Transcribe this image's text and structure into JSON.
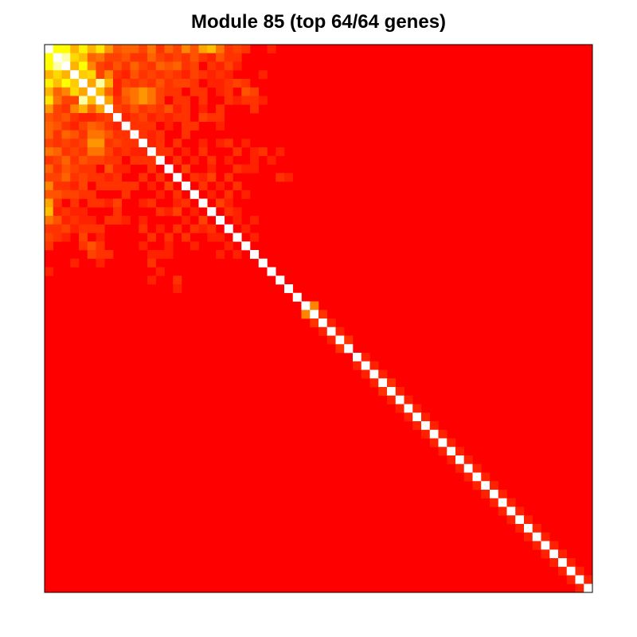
{
  "chart_data": {
    "type": "heatmap",
    "title": "Module 85 (top 64/64 genes)",
    "xlabel": "",
    "ylabel": "",
    "n_genes": 64,
    "value_range": [
      0,
      1
    ],
    "diagonal_value": 1,
    "default_value": 0,
    "color_scale": {
      "low": "#ff0000",
      "mid": "#ffa500",
      "high": "#ffff00",
      "max": "#ffffff"
    },
    "cells": [
      [
        0,
        1,
        0.85
      ],
      [
        0,
        2,
        0.85
      ],
      [
        0,
        3,
        0.55
      ],
      [
        0,
        4,
        0.8
      ],
      [
        0,
        5,
        0.55
      ],
      [
        0,
        6,
        0.75
      ],
      [
        0,
        7,
        0.45
      ],
      [
        0,
        8,
        0.25
      ],
      [
        0,
        9,
        0.3
      ],
      [
        0,
        10,
        0.3
      ],
      [
        0,
        11,
        0.2
      ],
      [
        0,
        12,
        0.35
      ],
      [
        0,
        13,
        0.15
      ],
      [
        0,
        14,
        0.3
      ],
      [
        0,
        15,
        0.2
      ],
      [
        0,
        16,
        0.4
      ],
      [
        0,
        17,
        0.25
      ],
      [
        0,
        18,
        0.5
      ],
      [
        0,
        19,
        0.6
      ],
      [
        0,
        20,
        0.35
      ],
      [
        0,
        21,
        0.15
      ],
      [
        0,
        22,
        0.2
      ],
      [
        0,
        23,
        0.15
      ],
      [
        0,
        26,
        0.1
      ],
      [
        1,
        2,
        0.95
      ],
      [
        1,
        3,
        0.7
      ],
      [
        1,
        4,
        0.6
      ],
      [
        1,
        5,
        0.3
      ],
      [
        1,
        6,
        0.35
      ],
      [
        1,
        7,
        0.2
      ],
      [
        1,
        8,
        0.2
      ],
      [
        1,
        9,
        0.25
      ],
      [
        1,
        10,
        0.15
      ],
      [
        1,
        11,
        0.15
      ],
      [
        1,
        12,
        0.3
      ],
      [
        1,
        13,
        0.2
      ],
      [
        1,
        14,
        0.15
      ],
      [
        1,
        15,
        0.2
      ],
      [
        1,
        16,
        0.15
      ],
      [
        1,
        17,
        0.25
      ],
      [
        1,
        18,
        0.15
      ],
      [
        1,
        19,
        0.1
      ],
      [
        1,
        20,
        0.25
      ],
      [
        1,
        21,
        0.15
      ],
      [
        1,
        22,
        0.15
      ],
      [
        2,
        3,
        0.55
      ],
      [
        2,
        4,
        0.85
      ],
      [
        2,
        5,
        0.4
      ],
      [
        2,
        6,
        0.2
      ],
      [
        2,
        7,
        0.15
      ],
      [
        2,
        8,
        0.25
      ],
      [
        2,
        9,
        0.15
      ],
      [
        2,
        10,
        0.3
      ],
      [
        2,
        11,
        0.2
      ],
      [
        2,
        12,
        0.15
      ],
      [
        2,
        13,
        0.3
      ],
      [
        2,
        14,
        0.25
      ],
      [
        2,
        15,
        0.3
      ],
      [
        2,
        16,
        0.15
      ],
      [
        2,
        17,
        0.2
      ],
      [
        2,
        19,
        0.15
      ],
      [
        2,
        20,
        0.1
      ],
      [
        2,
        21,
        0.2
      ],
      [
        2,
        22,
        0.1
      ],
      [
        3,
        4,
        0.65
      ],
      [
        3,
        5,
        0.7
      ],
      [
        3,
        6,
        0.2
      ],
      [
        3,
        7,
        0.4
      ],
      [
        3,
        8,
        0.15
      ],
      [
        3,
        9,
        0.1
      ],
      [
        3,
        10,
        0.25
      ],
      [
        3,
        11,
        0.15
      ],
      [
        3,
        12,
        0.2
      ],
      [
        3,
        13,
        0.15
      ],
      [
        3,
        14,
        0.2
      ],
      [
        3,
        15,
        0.15
      ],
      [
        3,
        16,
        0.1
      ],
      [
        3,
        17,
        0.2
      ],
      [
        3,
        18,
        0.15
      ],
      [
        3,
        19,
        0.1
      ],
      [
        3,
        20,
        0.15
      ],
      [
        3,
        21,
        0.1
      ],
      [
        3,
        25,
        0.1
      ],
      [
        4,
        5,
        0.5
      ],
      [
        4,
        6,
        0.95
      ],
      [
        4,
        7,
        0.55
      ],
      [
        4,
        8,
        0.1
      ],
      [
        4,
        9,
        0.2
      ],
      [
        4,
        10,
        0.15
      ],
      [
        4,
        11,
        0.2
      ],
      [
        4,
        12,
        0.15
      ],
      [
        4,
        13,
        0.25
      ],
      [
        4,
        14,
        0.15
      ],
      [
        4,
        15,
        0.2
      ],
      [
        4,
        16,
        0.2
      ],
      [
        4,
        17,
        0.15
      ],
      [
        4,
        19,
        0.1
      ],
      [
        4,
        20,
        0.1
      ],
      [
        4,
        21,
        0.15
      ],
      [
        4,
        22,
        0.2
      ],
      [
        4,
        23,
        0.15
      ],
      [
        5,
        6,
        0.6
      ],
      [
        5,
        7,
        0.3
      ],
      [
        5,
        8,
        0.1
      ],
      [
        5,
        9,
        0.3
      ],
      [
        5,
        10,
        0.35
      ],
      [
        5,
        11,
        0.45
      ],
      [
        5,
        12,
        0.35
      ],
      [
        5,
        13,
        0.2
      ],
      [
        5,
        14,
        0.15
      ],
      [
        5,
        15,
        0.15
      ],
      [
        5,
        17,
        0.15
      ],
      [
        5,
        18,
        0.15
      ],
      [
        5,
        20,
        0.1
      ],
      [
        5,
        21,
        0.15
      ],
      [
        5,
        23,
        0.25
      ],
      [
        5,
        24,
        0.2
      ],
      [
        6,
        7,
        0.5
      ],
      [
        6,
        8,
        0.15
      ],
      [
        6,
        9,
        0.25
      ],
      [
        6,
        10,
        0.35
      ],
      [
        6,
        11,
        0.45
      ],
      [
        6,
        12,
        0.35
      ],
      [
        6,
        13,
        0.2
      ],
      [
        6,
        15,
        0.15
      ],
      [
        6,
        16,
        0.15
      ],
      [
        6,
        18,
        0.15
      ],
      [
        6,
        21,
        0.15
      ],
      [
        6,
        22,
        0.1
      ],
      [
        6,
        23,
        0.15
      ],
      [
        6,
        24,
        0.15
      ],
      [
        6,
        25,
        0.1
      ],
      [
        7,
        8,
        0.2
      ],
      [
        7,
        9,
        0.15
      ],
      [
        7,
        10,
        0.25
      ],
      [
        7,
        11,
        0.15
      ],
      [
        7,
        12,
        0.2
      ],
      [
        7,
        13,
        0.15
      ],
      [
        7,
        14,
        0.25
      ],
      [
        7,
        15,
        0.1
      ],
      [
        7,
        16,
        0.15
      ],
      [
        7,
        18,
        0.1
      ],
      [
        7,
        20,
        0.15
      ],
      [
        7,
        24,
        0.15
      ],
      [
        8,
        9,
        0.1
      ],
      [
        8,
        10,
        0.15
      ],
      [
        8,
        11,
        0.2
      ],
      [
        8,
        12,
        0.1
      ],
      [
        8,
        13,
        0.15
      ],
      [
        8,
        14,
        0.1
      ],
      [
        8,
        15,
        0.15
      ],
      [
        8,
        16,
        0.15
      ],
      [
        8,
        18,
        0.2
      ],
      [
        8,
        19,
        0.15
      ],
      [
        8,
        20,
        0.15
      ],
      [
        9,
        10,
        0.15
      ],
      [
        9,
        11,
        0.15
      ],
      [
        9,
        12,
        0.15
      ],
      [
        9,
        14,
        0.1
      ],
      [
        9,
        16,
        0.15
      ],
      [
        9,
        17,
        0.15
      ],
      [
        9,
        20,
        0.1
      ],
      [
        10,
        11,
        0.15
      ],
      [
        10,
        12,
        0.1
      ],
      [
        10,
        13,
        0.15
      ],
      [
        10,
        16,
        0.15
      ],
      [
        11,
        12,
        0.1
      ],
      [
        11,
        13,
        0.15
      ],
      [
        11,
        15,
        0.15
      ],
      [
        11,
        18,
        0.1
      ],
      [
        11,
        20,
        0.1
      ],
      [
        11,
        21,
        0.15
      ],
      [
        11,
        23,
        0.1
      ],
      [
        12,
        13,
        0.15
      ],
      [
        12,
        14,
        0.15
      ],
      [
        12,
        16,
        0.1
      ],
      [
        12,
        18,
        0.15
      ],
      [
        12,
        22,
        0.15
      ],
      [
        12,
        24,
        0.1
      ],
      [
        12,
        25,
        0.15
      ],
      [
        12,
        27,
        0.1
      ],
      [
        13,
        15,
        0.15
      ],
      [
        13,
        17,
        0.1
      ],
      [
        13,
        19,
        0.15
      ],
      [
        13,
        21,
        0.1
      ],
      [
        13,
        24,
        0.1
      ],
      [
        13,
        26,
        0.1
      ],
      [
        14,
        16,
        0.2
      ],
      [
        14,
        19,
        0.1
      ],
      [
        14,
        22,
        0.15
      ],
      [
        14,
        23,
        0.1
      ],
      [
        14,
        24,
        0.1
      ],
      [
        15,
        17,
        0.15
      ],
      [
        15,
        18,
        0.1
      ],
      [
        15,
        19,
        0.2
      ],
      [
        15,
        21,
        0.15
      ],
      [
        15,
        27,
        0.15
      ],
      [
        15,
        28,
        0.1
      ],
      [
        16,
        18,
        0.15
      ],
      [
        16,
        20,
        0.1
      ],
      [
        16,
        22,
        0.15
      ],
      [
        17,
        19,
        0.1
      ],
      [
        17,
        21,
        0.15
      ],
      [
        17,
        23,
        0.1
      ],
      [
        18,
        20,
        0.2
      ],
      [
        18,
        21,
        0.1
      ],
      [
        19,
        21,
        0.15
      ],
      [
        19,
        22,
        0.1
      ],
      [
        20,
        22,
        0.1
      ],
      [
        20,
        24,
        0.1
      ],
      [
        21,
        23,
        0.1
      ],
      [
        22,
        24,
        0.1
      ],
      [
        30,
        31,
        0.4
      ],
      [
        31,
        32,
        0.15
      ],
      [
        32,
        33,
        0.1
      ],
      [
        33,
        34,
        0.1
      ],
      [
        34,
        35,
        0.15
      ],
      [
        36,
        37,
        0.1
      ],
      [
        37,
        38,
        0.1
      ],
      [
        38,
        39,
        0.1
      ],
      [
        39,
        40,
        0.15
      ],
      [
        40,
        41,
        0.1
      ],
      [
        41,
        42,
        0.1
      ],
      [
        42,
        43,
        0.1
      ],
      [
        43,
        44,
        0.1
      ],
      [
        44,
        45,
        0.1
      ],
      [
        45,
        46,
        0.1
      ],
      [
        46,
        47,
        0.1
      ],
      [
        47,
        48,
        0.1
      ],
      [
        48,
        49,
        0.1
      ],
      [
        49,
        50,
        0.1
      ],
      [
        50,
        51,
        0.1
      ],
      [
        51,
        52,
        0.1
      ],
      [
        52,
        53,
        0.1
      ],
      [
        53,
        54,
        0.1
      ],
      [
        54,
        55,
        0.1
      ],
      [
        55,
        56,
        0.1
      ],
      [
        56,
        57,
        0.1
      ],
      [
        57,
        58,
        0.1
      ],
      [
        58,
        59,
        0.1
      ],
      [
        59,
        60,
        0.1
      ],
      [
        60,
        61,
        0.1
      ],
      [
        61,
        62,
        0.1
      ],
      [
        62,
        63,
        0.1
      ]
    ]
  }
}
